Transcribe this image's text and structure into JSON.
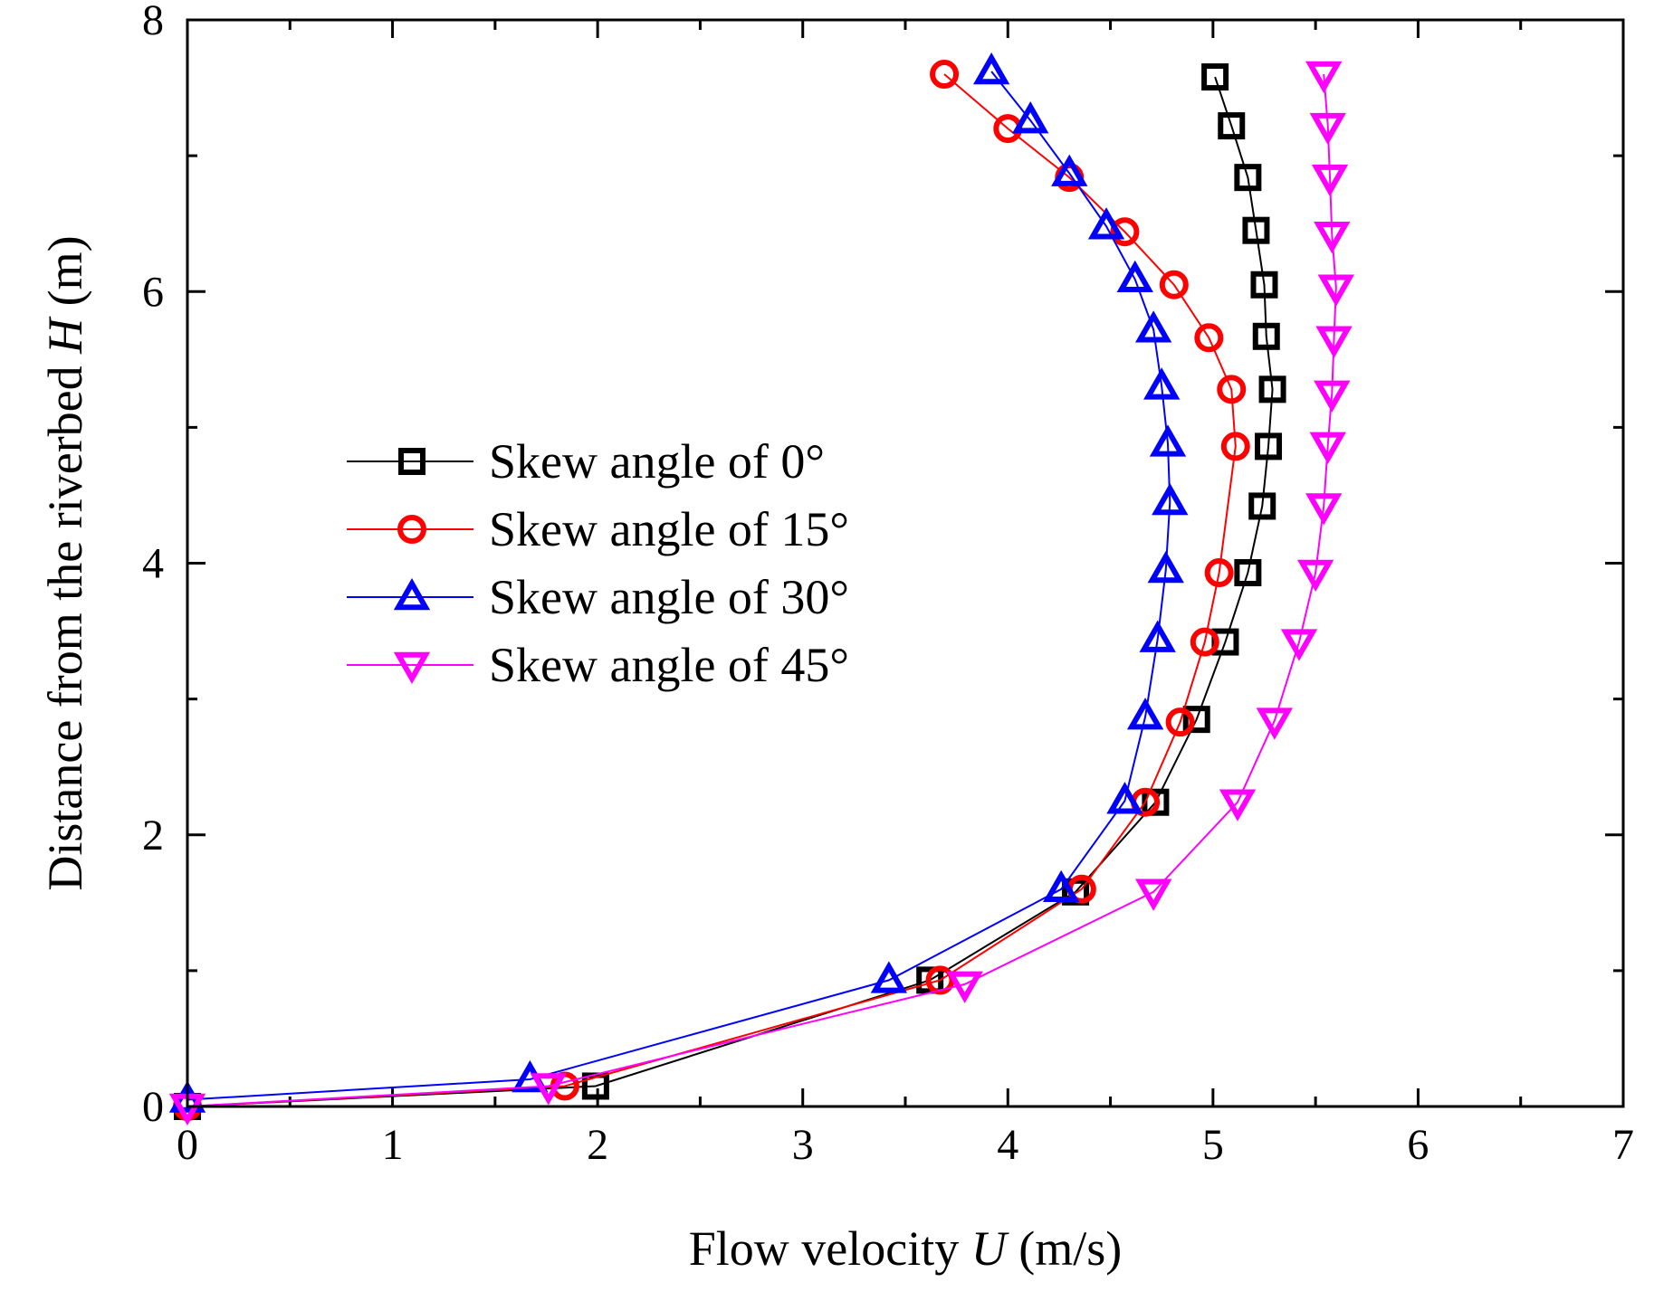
{
  "chart_data": {
    "type": "line",
    "xlabel": {
      "prefix": "Flow velocity ",
      "var": "U",
      "suffix": " (m/s)"
    },
    "ylabel": {
      "prefix": "Distance from the riverbed ",
      "var": "H",
      "suffix": " (m)"
    },
    "xlim": [
      0,
      7
    ],
    "ylim": [
      0,
      8
    ],
    "xticks": [
      0,
      1,
      2,
      3,
      4,
      5,
      6,
      7
    ],
    "yticks": [
      0,
      2,
      4,
      6,
      8
    ],
    "grid": false,
    "legend_position": "center-left",
    "series": [
      {
        "name": "Skew angle of 0°",
        "color": "#000000",
        "marker": "square",
        "points": [
          [
            0.0,
            0.0
          ],
          [
            1.99,
            0.15
          ],
          [
            3.62,
            0.93
          ],
          [
            4.33,
            1.58
          ],
          [
            4.72,
            2.24
          ],
          [
            4.92,
            2.85
          ],
          [
            5.06,
            3.42
          ],
          [
            5.17,
            3.93
          ],
          [
            5.24,
            4.42
          ],
          [
            5.27,
            4.86
          ],
          [
            5.29,
            5.28
          ],
          [
            5.26,
            5.67
          ],
          [
            5.25,
            6.05
          ],
          [
            5.21,
            6.45
          ],
          [
            5.17,
            6.84
          ],
          [
            5.09,
            7.22
          ],
          [
            5.01,
            7.58
          ]
        ]
      },
      {
        "name": "Skew angle of 15°",
        "color": "#ff0000",
        "marker": "circle",
        "points": [
          [
            0.0,
            0.0
          ],
          [
            1.84,
            0.15
          ],
          [
            3.67,
            0.93
          ],
          [
            4.36,
            1.6
          ],
          [
            4.67,
            2.24
          ],
          [
            4.84,
            2.83
          ],
          [
            4.96,
            3.42
          ],
          [
            5.03,
            3.93
          ],
          [
            5.11,
            4.86
          ],
          [
            5.09,
            5.28
          ],
          [
            4.98,
            5.66
          ],
          [
            4.81,
            6.05
          ],
          [
            4.57,
            6.44
          ],
          [
            4.3,
            6.84
          ],
          [
            4.0,
            7.2
          ],
          [
            3.69,
            7.6
          ]
        ]
      },
      {
        "name": "Skew angle of 30°",
        "color": "#0000ff",
        "marker": "triangle-up",
        "points": [
          [
            0.0,
            0.05
          ],
          [
            1.67,
            0.2
          ],
          [
            3.42,
            0.93
          ],
          [
            4.26,
            1.6
          ],
          [
            4.57,
            2.25
          ],
          [
            4.67,
            2.87
          ],
          [
            4.73,
            3.44
          ],
          [
            4.77,
            3.95
          ],
          [
            4.79,
            4.45
          ],
          [
            4.78,
            4.88
          ],
          [
            4.75,
            5.3
          ],
          [
            4.71,
            5.72
          ],
          [
            4.62,
            6.09
          ],
          [
            4.48,
            6.48
          ],
          [
            4.3,
            6.87
          ],
          [
            4.11,
            7.26
          ],
          [
            3.92,
            7.62
          ]
        ]
      },
      {
        "name": "Skew angle of 45°",
        "color": "#ff00ff",
        "marker": "triangle-down",
        "points": [
          [
            0.0,
            0.0
          ],
          [
            1.76,
            0.15
          ],
          [
            3.79,
            0.9
          ],
          [
            4.71,
            1.58
          ],
          [
            5.12,
            2.24
          ],
          [
            5.3,
            2.84
          ],
          [
            5.42,
            3.42
          ],
          [
            5.5,
            3.93
          ],
          [
            5.54,
            4.42
          ],
          [
            5.56,
            4.87
          ],
          [
            5.58,
            5.25
          ],
          [
            5.59,
            5.65
          ],
          [
            5.6,
            6.03
          ],
          [
            5.58,
            6.42
          ],
          [
            5.57,
            6.84
          ],
          [
            5.56,
            7.22
          ],
          [
            5.54,
            7.6
          ]
        ]
      }
    ]
  }
}
